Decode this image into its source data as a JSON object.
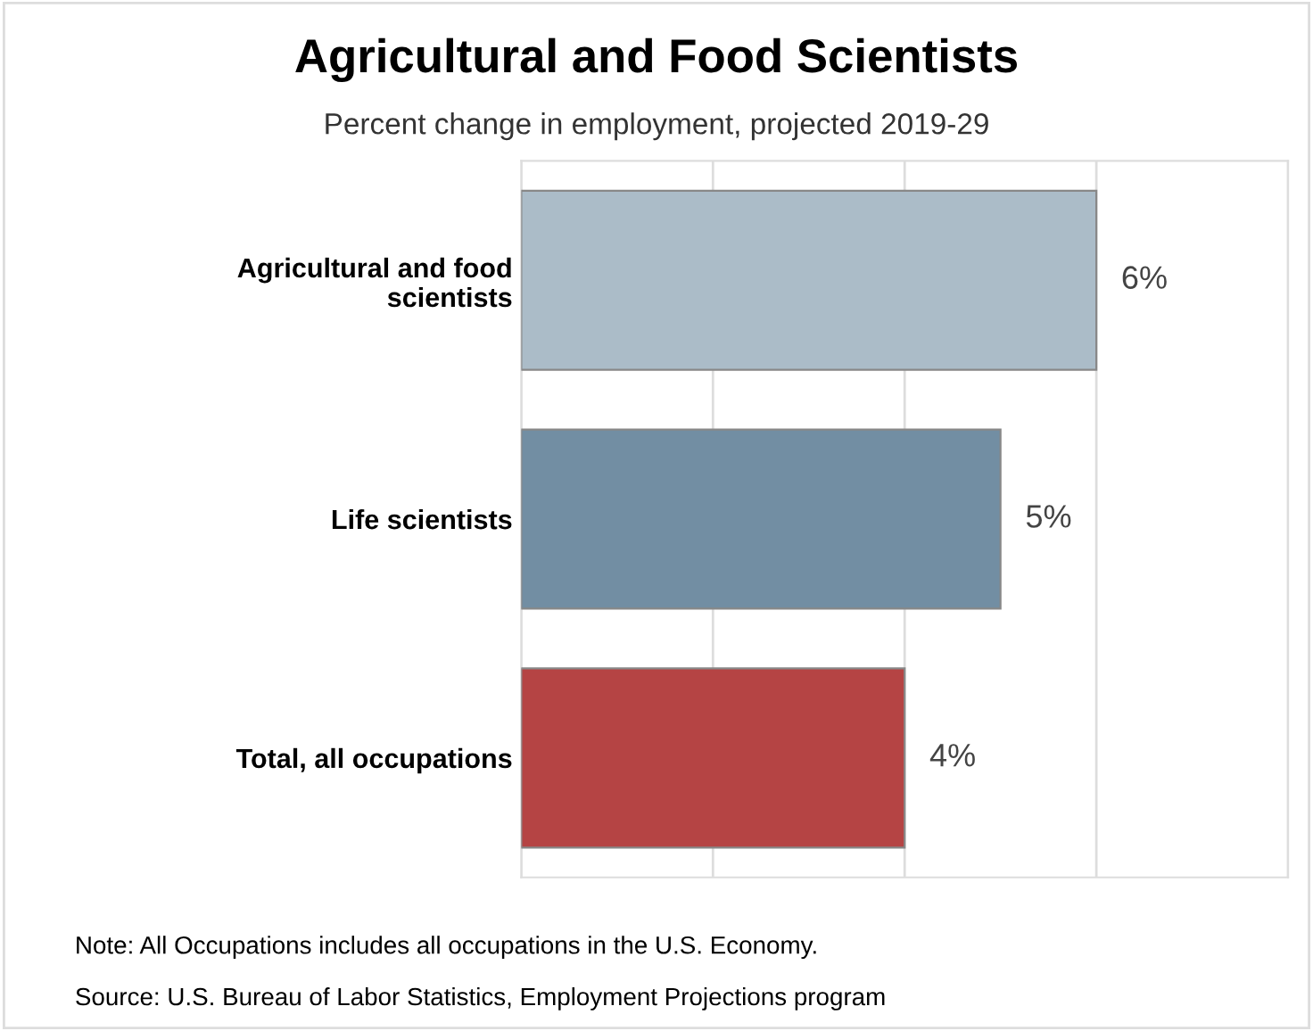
{
  "chart_data": {
    "type": "bar",
    "orientation": "horizontal",
    "title": "Agricultural and Food Scientists",
    "subtitle": "Percent change in employment, projected 2019-29",
    "categories": [
      "Agricultural and food\nscientists",
      "Life scientists",
      "Total, all occupations"
    ],
    "values": [
      6,
      5,
      4
    ],
    "colors": [
      "#abbcc8",
      "#728ea3",
      "#b54444"
    ],
    "value_labels": [
      "6%",
      "5%",
      "4%"
    ],
    "xlim": [
      0,
      8
    ],
    "xticks": [
      {
        "value": 0,
        "label": null
      },
      {
        "value": 2,
        "label": null
      },
      {
        "value": 4,
        "label": null
      },
      {
        "value": 6,
        "label": null
      },
      {
        "value": 8,
        "label": null
      }
    ],
    "grid": "x",
    "tick_labels": "y",
    "annotations": [
      "Note: All Occupations includes all occupations in the U.S. Economy.",
      "Source: U.S. Bureau of Labor Statistics, Employment Projections program"
    ]
  }
}
